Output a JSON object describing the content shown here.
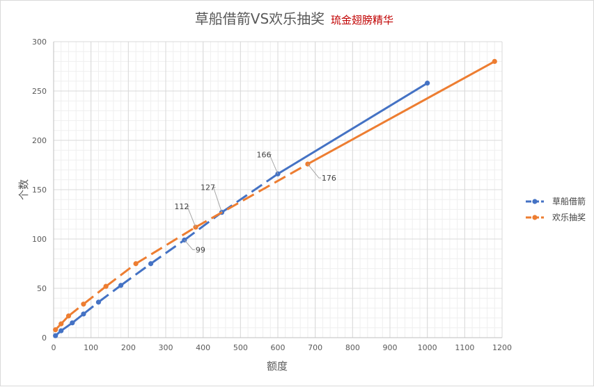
{
  "chart_data": {
    "type": "line",
    "title": "草船借箭VS欢乐抽奖",
    "subtitle": "琉金翅膀精华",
    "xlabel": "额度",
    "ylabel": "个数",
    "xlim": [
      0,
      1200
    ],
    "ylim": [
      0,
      300
    ],
    "x_ticks": [
      "0",
      "100",
      "200",
      "300",
      "400",
      "500",
      "600",
      "700",
      "800",
      "900",
      "1000",
      "1100",
      "1200"
    ],
    "y_ticks": [
      "0",
      "50",
      "100",
      "150",
      "200",
      "250",
      "300"
    ],
    "grid": true,
    "minor_grid": true,
    "legend_position": "right",
    "line_style": "dashed, solid after last labelled point",
    "series": [
      {
        "name": "草船借箭",
        "color": "#4472c4",
        "points": [
          {
            "x": 5,
            "y": 2
          },
          {
            "x": 20,
            "y": 7
          },
          {
            "x": 50,
            "y": 15
          },
          {
            "x": 80,
            "y": 24
          },
          {
            "x": 120,
            "y": 36
          },
          {
            "x": 180,
            "y": 53
          },
          {
            "x": 260,
            "y": 75
          },
          {
            "x": 350,
            "y": 99,
            "label": "99"
          },
          {
            "x": 450,
            "y": 127,
            "label": "127"
          },
          {
            "x": 600,
            "y": 166,
            "label": "166"
          },
          {
            "x": 1000,
            "y": 258
          }
        ]
      },
      {
        "name": "欢乐抽奖",
        "color": "#ed7d31",
        "points": [
          {
            "x": 5,
            "y": 8
          },
          {
            "x": 20,
            "y": 14
          },
          {
            "x": 40,
            "y": 22
          },
          {
            "x": 80,
            "y": 34
          },
          {
            "x": 140,
            "y": 52
          },
          {
            "x": 220,
            "y": 75
          },
          {
            "x": 380,
            "y": 112,
            "label": "112"
          },
          {
            "x": 680,
            "y": 176,
            "label": "176"
          },
          {
            "x": 1180,
            "y": 280
          }
        ]
      }
    ]
  }
}
